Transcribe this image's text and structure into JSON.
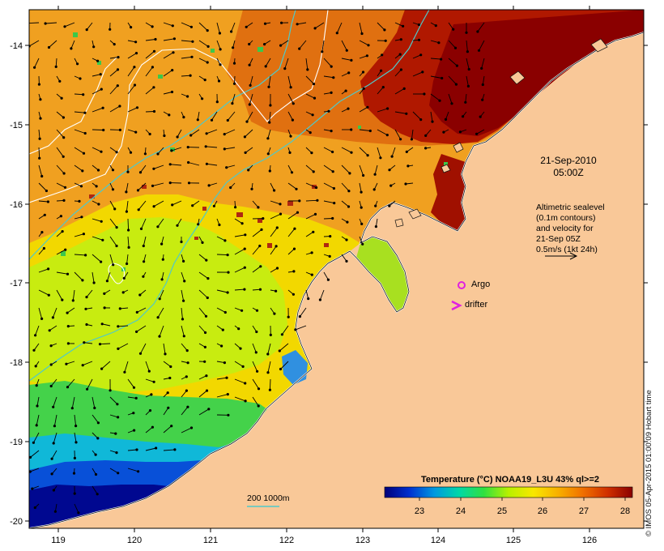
{
  "map": {
    "date_label": "21-Sep-2010",
    "time_label": "05:00Z",
    "altimetry_lines": [
      "Altimetric sealevel",
      "(0.1m contours)",
      "and velocity for",
      "21-Sep 05Z",
      "0.5m/s (1kt 24h)"
    ],
    "argo_label": "Argo",
    "drifter_label": "drifter",
    "depth_label": "200  1000m",
    "credit": "© IMOS 05-Apr-2015 01:00:09 Hobart time",
    "x_ticks": [
      "119",
      "120",
      "121",
      "122",
      "123",
      "124",
      "125",
      "126"
    ],
    "y_ticks": [
      "-14",
      "-15",
      "-16",
      "-17",
      "-18",
      "-19",
      "-20"
    ],
    "colors": {
      "land": "#f9c898",
      "argo": "#e020e0",
      "drifter": "#e020e0",
      "bathy": "#4fc9c9"
    }
  },
  "colorbar": {
    "title": "Temperature (°C) NOAA19_L3U 43% ql>=2",
    "ticks": [
      "23",
      "24",
      "25",
      "26",
      "27",
      "28"
    ]
  }
}
